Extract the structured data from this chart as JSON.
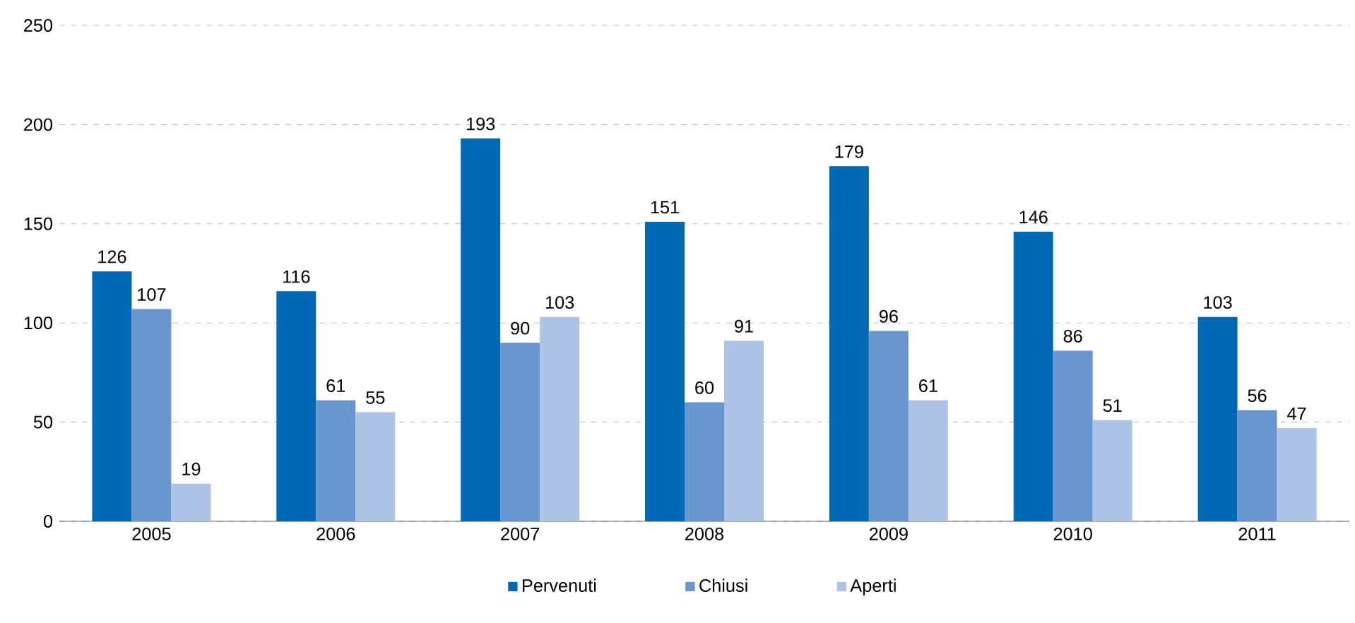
{
  "chart_data": {
    "type": "bar",
    "categories": [
      "2005",
      "2006",
      "2007",
      "2008",
      "2009",
      "2010",
      "2011"
    ],
    "series": [
      {
        "name": "Pervenuti",
        "color": "#0068b4",
        "values": [
          126,
          116,
          193,
          151,
          179,
          146,
          103
        ]
      },
      {
        "name": "Chiusi",
        "color": "#6a96d0",
        "values": [
          107,
          61,
          90,
          60,
          96,
          86,
          56
        ]
      },
      {
        "name": "Aperti",
        "color": "#adc3e5",
        "values": [
          19,
          55,
          103,
          91,
          61,
          51,
          47
        ]
      }
    ],
    "ylim": [
      0,
      250
    ],
    "yticks": [
      0,
      50,
      100,
      150,
      200,
      250
    ],
    "grid": "y",
    "legend": "bottom",
    "data_labels": true
  }
}
